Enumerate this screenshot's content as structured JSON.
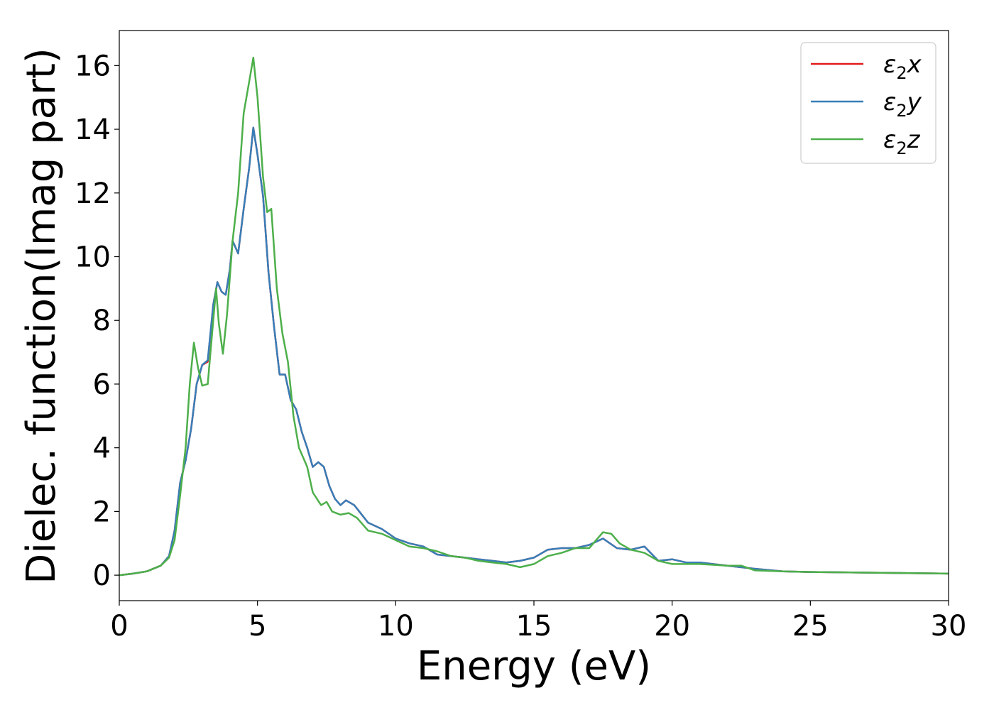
{
  "chart_data": {
    "type": "line",
    "title": "",
    "xlabel": "Energy (eV)",
    "ylabel": "Dielec. function(Imag part)",
    "xlim": [
      0,
      30
    ],
    "ylim": [
      -0.8,
      17.1
    ],
    "xticks": [
      0,
      5,
      10,
      15,
      20,
      25,
      30
    ],
    "yticks": [
      0,
      2,
      4,
      6,
      8,
      10,
      12,
      14,
      16
    ],
    "grid": false,
    "legend_position": "top-right",
    "series": [
      {
        "name": "ε2x",
        "color": "#e41a1c",
        "points": [
          [
            0,
            0
          ],
          [
            0.5,
            0.05
          ],
          [
            1.0,
            0.12
          ],
          [
            1.5,
            0.3
          ],
          [
            1.8,
            0.6
          ],
          [
            2.0,
            1.4
          ],
          [
            2.2,
            2.9
          ],
          [
            2.4,
            3.6
          ],
          [
            2.6,
            4.6
          ],
          [
            2.8,
            6.0
          ],
          [
            3.0,
            6.6
          ],
          [
            3.2,
            6.7
          ],
          [
            3.4,
            8.5
          ],
          [
            3.55,
            9.2
          ],
          [
            3.7,
            8.9
          ],
          [
            3.85,
            8.8
          ],
          [
            4.0,
            9.6
          ],
          [
            4.1,
            10.5
          ],
          [
            4.3,
            10.1
          ],
          [
            4.5,
            11.5
          ],
          [
            4.7,
            12.8
          ],
          [
            4.85,
            14.05
          ],
          [
            5.0,
            13.2
          ],
          [
            5.2,
            11.9
          ],
          [
            5.4,
            9.5
          ],
          [
            5.6,
            7.8
          ],
          [
            5.8,
            6.3
          ],
          [
            6.0,
            6.3
          ],
          [
            6.2,
            5.5
          ],
          [
            6.4,
            5.2
          ],
          [
            6.6,
            4.5
          ],
          [
            6.8,
            4.0
          ],
          [
            7.0,
            3.4
          ],
          [
            7.2,
            3.55
          ],
          [
            7.4,
            3.4
          ],
          [
            7.6,
            2.8
          ],
          [
            7.8,
            2.4
          ],
          [
            8.0,
            2.2
          ],
          [
            8.2,
            2.35
          ],
          [
            8.5,
            2.2
          ],
          [
            9.0,
            1.65
          ],
          [
            9.5,
            1.45
          ],
          [
            10.0,
            1.15
          ],
          [
            10.5,
            1.0
          ],
          [
            11.0,
            0.9
          ],
          [
            11.5,
            0.65
          ],
          [
            12.0,
            0.6
          ],
          [
            12.5,
            0.55
          ],
          [
            13.0,
            0.5
          ],
          [
            13.5,
            0.45
          ],
          [
            14.0,
            0.4
          ],
          [
            14.5,
            0.45
          ],
          [
            15.0,
            0.55
          ],
          [
            15.5,
            0.8
          ],
          [
            16.0,
            0.85
          ],
          [
            16.5,
            0.85
          ],
          [
            17.0,
            0.95
          ],
          [
            17.5,
            1.15
          ],
          [
            18.0,
            0.85
          ],
          [
            18.5,
            0.8
          ],
          [
            19.0,
            0.9
          ],
          [
            19.5,
            0.45
          ],
          [
            20.0,
            0.5
          ],
          [
            20.5,
            0.4
          ],
          [
            21.0,
            0.4
          ],
          [
            22.0,
            0.3
          ],
          [
            23.0,
            0.2
          ],
          [
            24.0,
            0.12
          ],
          [
            25.0,
            0.1
          ],
          [
            27.0,
            0.08
          ],
          [
            30.0,
            0.05
          ]
        ]
      },
      {
        "name": "ε2y",
        "color": "#377eb8",
        "points": [
          [
            0,
            0
          ],
          [
            0.5,
            0.05
          ],
          [
            1.0,
            0.12
          ],
          [
            1.5,
            0.3
          ],
          [
            1.8,
            0.6
          ],
          [
            2.0,
            1.4
          ],
          [
            2.2,
            2.9
          ],
          [
            2.4,
            3.6
          ],
          [
            2.6,
            4.6
          ],
          [
            2.8,
            6.0
          ],
          [
            3.0,
            6.6
          ],
          [
            3.2,
            6.75
          ],
          [
            3.4,
            8.5
          ],
          [
            3.55,
            9.2
          ],
          [
            3.7,
            8.9
          ],
          [
            3.85,
            8.8
          ],
          [
            4.0,
            9.6
          ],
          [
            4.1,
            10.5
          ],
          [
            4.3,
            10.1
          ],
          [
            4.5,
            11.5
          ],
          [
            4.7,
            12.8
          ],
          [
            4.85,
            14.05
          ],
          [
            5.0,
            13.2
          ],
          [
            5.2,
            11.9
          ],
          [
            5.4,
            9.5
          ],
          [
            5.6,
            7.8
          ],
          [
            5.8,
            6.3
          ],
          [
            6.0,
            6.3
          ],
          [
            6.2,
            5.5
          ],
          [
            6.4,
            5.2
          ],
          [
            6.6,
            4.5
          ],
          [
            6.8,
            4.0
          ],
          [
            7.0,
            3.4
          ],
          [
            7.2,
            3.55
          ],
          [
            7.4,
            3.4
          ],
          [
            7.6,
            2.8
          ],
          [
            7.8,
            2.4
          ],
          [
            8.0,
            2.2
          ],
          [
            8.2,
            2.35
          ],
          [
            8.5,
            2.2
          ],
          [
            9.0,
            1.65
          ],
          [
            9.5,
            1.45
          ],
          [
            10.0,
            1.15
          ],
          [
            10.5,
            1.0
          ],
          [
            11.0,
            0.9
          ],
          [
            11.5,
            0.65
          ],
          [
            12.0,
            0.6
          ],
          [
            12.5,
            0.55
          ],
          [
            13.0,
            0.5
          ],
          [
            13.5,
            0.45
          ],
          [
            14.0,
            0.4
          ],
          [
            14.5,
            0.45
          ],
          [
            15.0,
            0.55
          ],
          [
            15.5,
            0.8
          ],
          [
            16.0,
            0.85
          ],
          [
            16.5,
            0.85
          ],
          [
            17.0,
            0.95
          ],
          [
            17.5,
            1.15
          ],
          [
            18.0,
            0.85
          ],
          [
            18.5,
            0.8
          ],
          [
            19.0,
            0.9
          ],
          [
            19.5,
            0.45
          ],
          [
            20.0,
            0.5
          ],
          [
            20.5,
            0.4
          ],
          [
            21.0,
            0.4
          ],
          [
            22.0,
            0.3
          ],
          [
            23.0,
            0.2
          ],
          [
            24.0,
            0.12
          ],
          [
            25.0,
            0.1
          ],
          [
            27.0,
            0.08
          ],
          [
            30.0,
            0.05
          ]
        ]
      },
      {
        "name": "ε2z",
        "color": "#4daf4a",
        "points": [
          [
            0,
            0
          ],
          [
            0.5,
            0.05
          ],
          [
            1.0,
            0.12
          ],
          [
            1.5,
            0.3
          ],
          [
            1.8,
            0.55
          ],
          [
            2.0,
            1.1
          ],
          [
            2.2,
            2.5
          ],
          [
            2.4,
            4.0
          ],
          [
            2.55,
            6.0
          ],
          [
            2.7,
            7.3
          ],
          [
            2.85,
            6.5
          ],
          [
            3.0,
            5.95
          ],
          [
            3.2,
            6.0
          ],
          [
            3.35,
            7.5
          ],
          [
            3.5,
            9.0
          ],
          [
            3.6,
            7.9
          ],
          [
            3.75,
            6.95
          ],
          [
            3.9,
            8.2
          ],
          [
            4.1,
            10.5
          ],
          [
            4.3,
            12.0
          ],
          [
            4.5,
            14.5
          ],
          [
            4.7,
            15.5
          ],
          [
            4.85,
            16.25
          ],
          [
            5.0,
            15.0
          ],
          [
            5.2,
            12.5
          ],
          [
            5.35,
            11.4
          ],
          [
            5.5,
            11.5
          ],
          [
            5.7,
            9.0
          ],
          [
            5.9,
            7.6
          ],
          [
            6.1,
            6.7
          ],
          [
            6.3,
            5.0
          ],
          [
            6.5,
            4.0
          ],
          [
            6.8,
            3.4
          ],
          [
            7.0,
            2.6
          ],
          [
            7.3,
            2.2
          ],
          [
            7.5,
            2.3
          ],
          [
            7.7,
            2.0
          ],
          [
            8.0,
            1.9
          ],
          [
            8.3,
            1.95
          ],
          [
            8.6,
            1.8
          ],
          [
            9.0,
            1.4
          ],
          [
            9.5,
            1.3
          ],
          [
            10.0,
            1.1
          ],
          [
            10.5,
            0.9
          ],
          [
            11.0,
            0.85
          ],
          [
            11.5,
            0.75
          ],
          [
            12.0,
            0.6
          ],
          [
            12.5,
            0.55
          ],
          [
            13.0,
            0.45
          ],
          [
            13.5,
            0.4
          ],
          [
            14.0,
            0.35
          ],
          [
            14.5,
            0.25
          ],
          [
            15.0,
            0.35
          ],
          [
            15.5,
            0.6
          ],
          [
            16.0,
            0.7
          ],
          [
            16.5,
            0.85
          ],
          [
            17.0,
            0.85
          ],
          [
            17.5,
            1.35
          ],
          [
            17.8,
            1.3
          ],
          [
            18.1,
            1.0
          ],
          [
            18.5,
            0.8
          ],
          [
            19.0,
            0.7
          ],
          [
            19.5,
            0.45
          ],
          [
            20.0,
            0.35
          ],
          [
            20.5,
            0.35
          ],
          [
            21.0,
            0.35
          ],
          [
            22.0,
            0.3
          ],
          [
            22.5,
            0.3
          ],
          [
            23.0,
            0.15
          ],
          [
            24.0,
            0.12
          ],
          [
            25.0,
            0.1
          ],
          [
            27.0,
            0.08
          ],
          [
            30.0,
            0.05
          ]
        ]
      }
    ]
  }
}
